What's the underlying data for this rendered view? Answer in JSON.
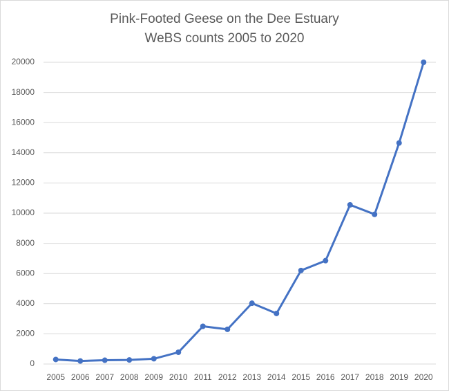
{
  "chart_data": {
    "type": "line",
    "title": "Pink-Footed Geese on the Dee Estuary",
    "subtitle": "WeBS counts 2005 to 2020",
    "categories": [
      "2005",
      "2006",
      "2007",
      "2008",
      "2009",
      "2010",
      "2011",
      "2012",
      "2013",
      "2014",
      "2015",
      "2016",
      "2017",
      "2018",
      "2019",
      "2020"
    ],
    "values": [
      300,
      200,
      250,
      270,
      350,
      780,
      2500,
      2300,
      4030,
      3350,
      6200,
      6850,
      10550,
      9920,
      14650,
      20000
    ],
    "color": "#4472c4",
    "ylim": [
      0,
      20000
    ],
    "yticks": [
      0,
      2000,
      4000,
      6000,
      8000,
      10000,
      12000,
      14000,
      16000,
      18000,
      20000
    ],
    "grid": true
  }
}
